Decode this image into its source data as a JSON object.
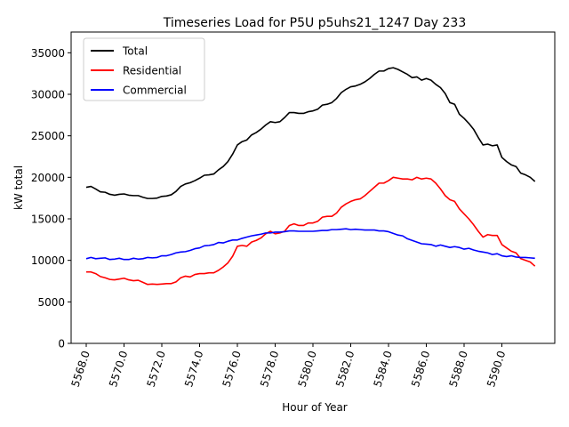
{
  "chart_data": {
    "type": "line",
    "title": "Timeseries Load for P5U p5uhs21_1247  Day 233",
    "xlabel": "Hour of Year",
    "ylabel": "kW total",
    "xlim": [
      5567.2,
      5592.8
    ],
    "ylim": [
      0,
      37500
    ],
    "xticks": [
      5568,
      5570,
      5572,
      5574,
      5576,
      5578,
      5580,
      5582,
      5584,
      5586,
      5588,
      5590
    ],
    "xtick_labels": [
      "5568.0",
      "5570.0",
      "5572.0",
      "5574.0",
      "5576.0",
      "5578.0",
      "5580.0",
      "5582.0",
      "5584.0",
      "5586.0",
      "5588.0",
      "5590.0"
    ],
    "yticks": [
      0,
      5000,
      10000,
      15000,
      20000,
      25000,
      30000,
      35000
    ],
    "ytick_labels": [
      "0",
      "5000",
      "10000",
      "15000",
      "20000",
      "25000",
      "30000",
      "35000"
    ],
    "legend_position": "top-left",
    "x_start": 5568.0,
    "x_step": 0.25,
    "series": [
      {
        "name": "Total",
        "color": "#000000",
        "values": [
          18800,
          18900,
          18600,
          18250,
          18200,
          17950,
          17850,
          17950,
          18000,
          17850,
          17800,
          17800,
          17600,
          17450,
          17450,
          17500,
          17700,
          17750,
          17900,
          18300,
          18900,
          19200,
          19350,
          19600,
          19900,
          20250,
          20300,
          20400,
          20900,
          21300,
          21900,
          22800,
          23900,
          24300,
          24500,
          25100,
          25400,
          25800,
          26300,
          26700,
          26600,
          26700,
          27200,
          27800,
          27800,
          27700,
          27700,
          27900,
          28000,
          28200,
          28700,
          28800,
          29000,
          29500,
          30200,
          30600,
          30900,
          31000,
          31200,
          31500,
          31900,
          32400,
          32800,
          32800,
          33100,
          33200,
          33000,
          32700,
          32400,
          32000,
          32100,
          31700,
          31900,
          31700,
          31200,
          30800,
          30100,
          29000,
          28800,
          27600,
          27100,
          26500,
          25800,
          24800,
          23900,
          24000,
          23800,
          23900,
          22400,
          21900,
          21500,
          21300,
          20500,
          20300,
          20000,
          19500
        ]
      },
      {
        "name": "Residential",
        "color": "#ff0000",
        "values": [
          8600,
          8600,
          8400,
          8050,
          7900,
          7700,
          7650,
          7750,
          7850,
          7650,
          7550,
          7600,
          7350,
          7100,
          7150,
          7100,
          7150,
          7200,
          7200,
          7400,
          7900,
          8100,
          8000,
          8300,
          8400,
          8400,
          8500,
          8500,
          8800,
          9200,
          9700,
          10500,
          11700,
          11800,
          11700,
          12200,
          12400,
          12700,
          13200,
          13500,
          13200,
          13300,
          13500,
          14200,
          14400,
          14200,
          14200,
          14500,
          14500,
          14700,
          15200,
          15300,
          15300,
          15700,
          16400,
          16800,
          17100,
          17300,
          17400,
          17800,
          18300,
          18800,
          19300,
          19300,
          19600,
          20000,
          19900,
          19800,
          19800,
          19700,
          20000,
          19800,
          19900,
          19800,
          19300,
          18600,
          17800,
          17300,
          17100,
          16200,
          15600,
          15000,
          14300,
          13500,
          12800,
          13100,
          13000,
          13000,
          11900,
          11500,
          11100,
          10900,
          10200,
          10000,
          9800,
          9300
        ]
      },
      {
        "name": "Commercial",
        "color": "#0000ff",
        "values": [
          10200,
          10350,
          10200,
          10250,
          10300,
          10100,
          10150,
          10250,
          10100,
          10100,
          10250,
          10150,
          10200,
          10350,
          10300,
          10350,
          10550,
          10550,
          10700,
          10900,
          11000,
          11050,
          11200,
          11400,
          11500,
          11750,
          11800,
          11900,
          12150,
          12100,
          12300,
          12450,
          12450,
          12650,
          12800,
          12950,
          13050,
          13150,
          13300,
          13300,
          13400,
          13400,
          13450,
          13550,
          13550,
          13500,
          13500,
          13500,
          13500,
          13550,
          13600,
          13600,
          13700,
          13700,
          13750,
          13800,
          13700,
          13750,
          13700,
          13650,
          13650,
          13650,
          13550,
          13550,
          13450,
          13250,
          13050,
          12950,
          12600,
          12400,
          12200,
          12000,
          11950,
          11900,
          11700,
          11850,
          11700,
          11550,
          11650,
          11550,
          11350,
          11450,
          11250,
          11100,
          11000,
          10900,
          10700,
          10800,
          10550,
          10450,
          10550,
          10400,
          10350,
          10350,
          10300,
          10250
        ]
      }
    ]
  }
}
